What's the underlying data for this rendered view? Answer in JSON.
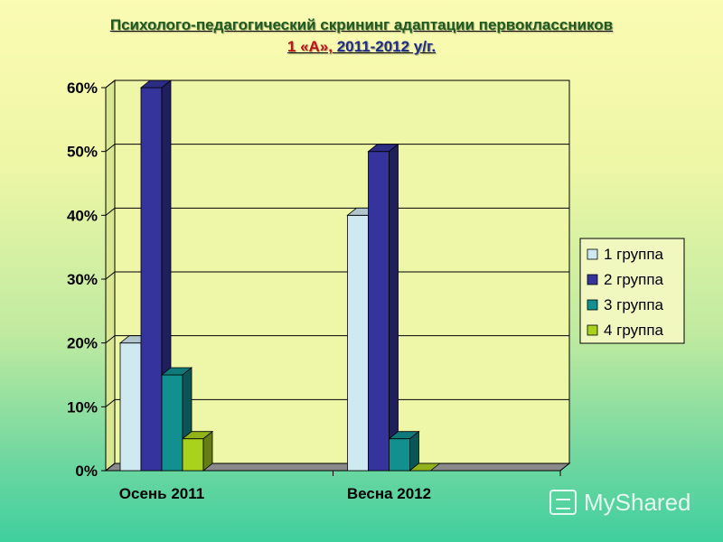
{
  "title": {
    "line1": "Психолого-педагогический скрининг адаптации первоклассников",
    "line2_part1": "1 «А»,",
    "line2_part2": "2011-2012 у/г."
  },
  "watermark": {
    "text": "MyShared",
    "icon": "presentation-icon"
  },
  "chart_data": {
    "type": "bar",
    "categories": [
      "Осень 2011",
      "Весна 2012"
    ],
    "series": [
      {
        "name": "1 группа",
        "values": [
          20,
          40
        ],
        "color": "#cfe9f0"
      },
      {
        "name": "2 группа",
        "values": [
          60,
          50
        ],
        "color": "#34349c"
      },
      {
        "name": "3 группа",
        "values": [
          15,
          5
        ],
        "color": "#11908f"
      },
      {
        "name": "4 группа",
        "values": [
          5,
          0
        ],
        "color": "#a8d21c"
      }
    ],
    "yticks": [
      "0%",
      "10%",
      "20%",
      "30%",
      "40%",
      "50%",
      "60%"
    ],
    "ylim": [
      0,
      60
    ],
    "grid": true,
    "legend": "right",
    "xlabel": "",
    "ylabel": ""
  }
}
